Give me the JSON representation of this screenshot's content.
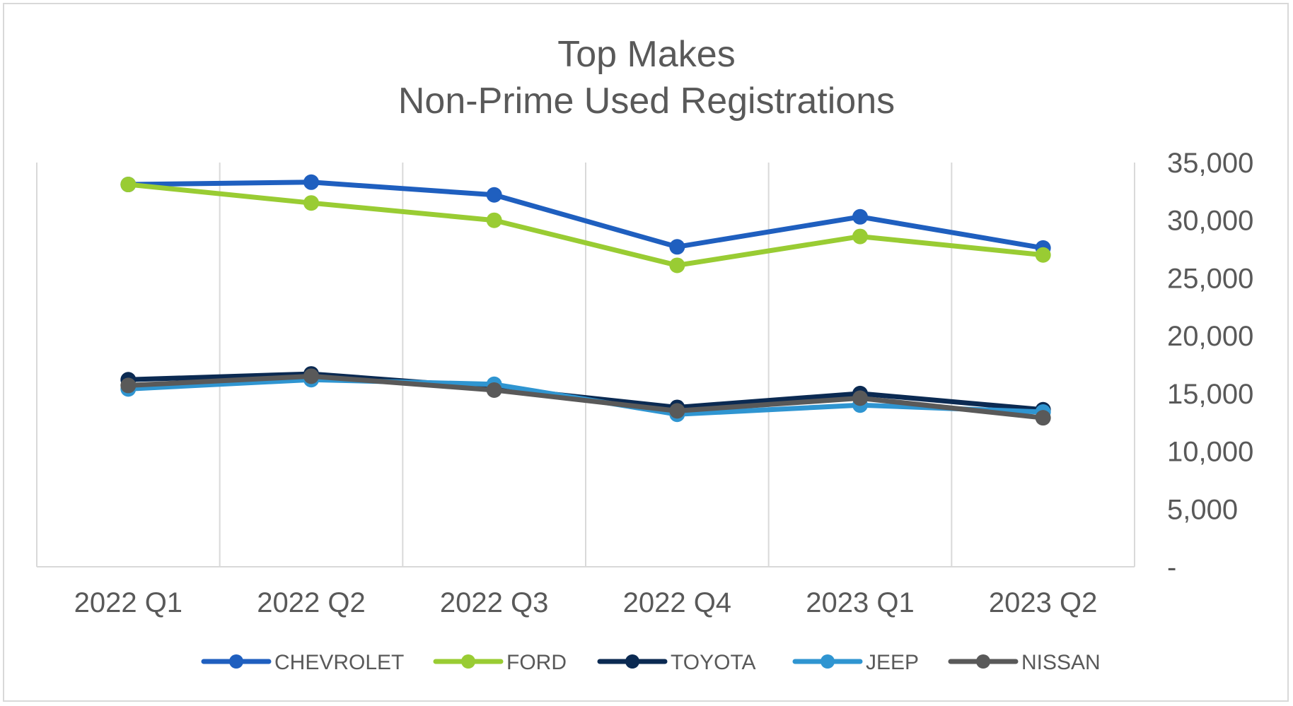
{
  "chart_data": {
    "type": "line",
    "title": "Top Makes",
    "subtitle": "Non-Prime Used Registrations",
    "categories": [
      "2022 Q1",
      "2022 Q2",
      "2022 Q3",
      "2022 Q4",
      "2023 Q1",
      "2023 Q2"
    ],
    "ylim": [
      0,
      35000
    ],
    "y_ticks": [
      0,
      5000,
      10000,
      15000,
      20000,
      25000,
      30000,
      35000
    ],
    "y_tick_labels": [
      "-",
      "5,000",
      "10,000",
      "15,000",
      "20,000",
      "25,000",
      "30,000",
      "35,000"
    ],
    "y_axis_side": "right",
    "grid": "vertical",
    "legend_position": "bottom",
    "series": [
      {
        "name": "CHEVROLET",
        "color": "#1f5fbf",
        "values": [
          33100,
          33300,
          32200,
          27700,
          30300,
          27600
        ]
      },
      {
        "name": "FORD",
        "color": "#99cc33",
        "values": [
          33100,
          31500,
          30000,
          26100,
          28600,
          27000
        ]
      },
      {
        "name": "TOYOTA",
        "color": "#0b2a52",
        "values": [
          16200,
          16700,
          15500,
          13800,
          15000,
          13600
        ]
      },
      {
        "name": "JEEP",
        "color": "#2f95d1",
        "values": [
          15400,
          16200,
          15800,
          13200,
          14000,
          13400
        ]
      },
      {
        "name": "NISSAN",
        "color": "#595959",
        "values": [
          15700,
          16500,
          15300,
          13500,
          14600,
          12900
        ]
      }
    ]
  }
}
